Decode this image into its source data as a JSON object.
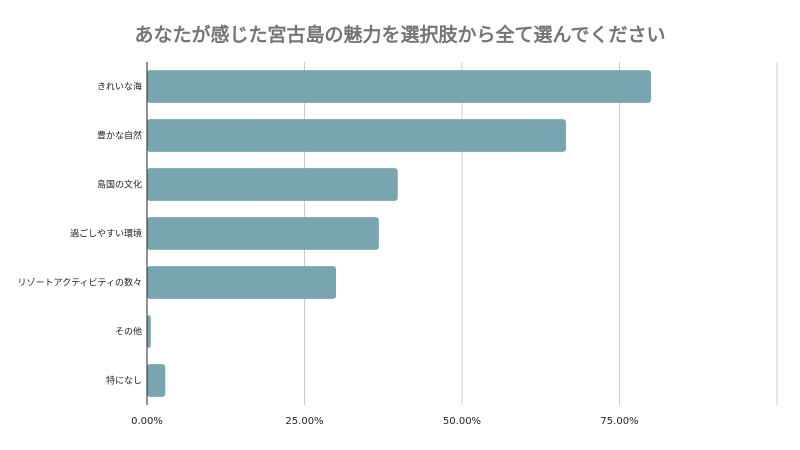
{
  "chart_data": {
    "type": "bar",
    "orientation": "horizontal",
    "title": "あなたが感じた宮古島の魅力を選択肢から全て選んでください",
    "categories": [
      "きれいな海",
      "豊かな自然",
      "島国の文化",
      "過ごしやすい環境",
      "リゾートアクティビティの数々",
      "その他",
      "特になし"
    ],
    "values": [
      0.8,
      0.665,
      0.398,
      0.368,
      0.3,
      0.006,
      0.029
    ],
    "xlim": [
      0,
      1.0
    ],
    "xticks": [
      0,
      0.25,
      0.5,
      0.75
    ],
    "xtick_labels": [
      "0.00%",
      "25.00%",
      "50.00%",
      "75.00%"
    ],
    "grid": true,
    "legend": "none",
    "bar_color": "#78a5b0",
    "grid_color": "#cccccc",
    "axis_color": "#222222"
  }
}
